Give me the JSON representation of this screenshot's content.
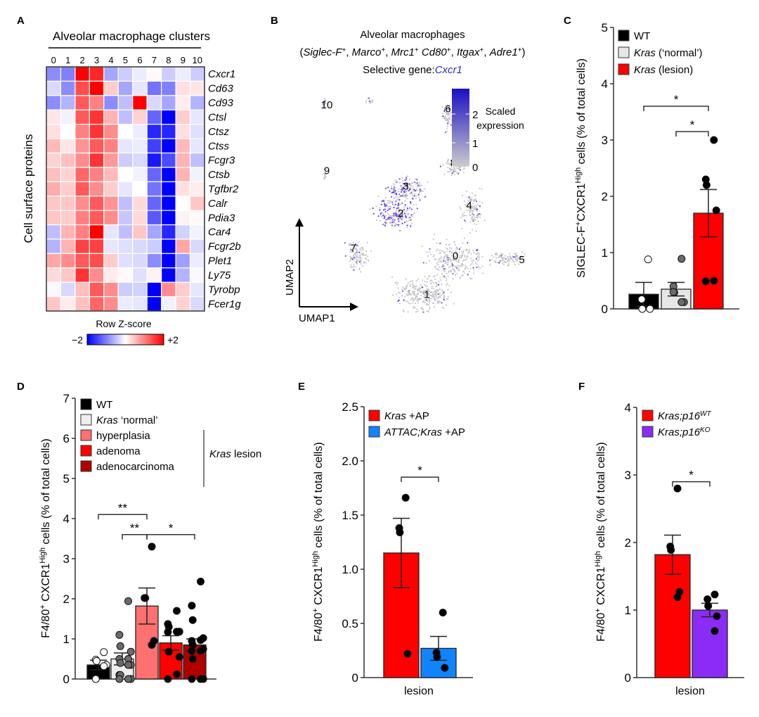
{
  "panels": {
    "A": {
      "letter": "A"
    },
    "B": {
      "letter": "B"
    },
    "C": {
      "letter": "C"
    },
    "D": {
      "letter": "D"
    },
    "E": {
      "letter": "E"
    },
    "F": {
      "letter": "F"
    }
  },
  "chart_data": [
    {
      "panel": "A",
      "type": "heatmap",
      "title": "Alveolar macrophage clusters",
      "ylabel": "Cell surface proteins",
      "colorbar": {
        "title": "Row Z-score",
        "min_label": "−2",
        "max_label": "+2",
        "range": [
          -2,
          2
        ],
        "low_color": "#0000ff",
        "mid_color": "#ffffff",
        "high_color": "#ff0000"
      },
      "columns": [
        "0",
        "1",
        "2",
        "3",
        "4",
        "5",
        "6",
        "7",
        "8",
        "9",
        "10"
      ],
      "rows": [
        "Cxcr1",
        "Cd63",
        "Cd93",
        "Ctsl",
        "Ctsz",
        "Ctss",
        "Fcgr3",
        "Ctsb",
        "Tgfbr2",
        "Calr",
        "Pdia3",
        "Car4",
        "Fcgr2b",
        "Plet1",
        "Ly75",
        "Tyrobp",
        "Fcer1g"
      ],
      "values": [
        [
          -0.9,
          -1.0,
          2.0,
          1.7,
          -0.7,
          -0.4,
          -0.15,
          0.05,
          -0.4,
          -0.15,
          -0.4
        ],
        [
          -0.3,
          -0.9,
          1.4,
          2.0,
          0.4,
          -0.7,
          -0.2,
          -1.1,
          -1.0,
          0.25,
          0.2
        ],
        [
          -0.9,
          -0.6,
          1.3,
          1.0,
          -0.9,
          -0.5,
          2.0,
          -0.3,
          -0.7,
          0.15,
          -0.6
        ],
        [
          0.2,
          -0.1,
          1.3,
          1.6,
          0.6,
          -0.5,
          0.35,
          -1.2,
          -2.0,
          0.4,
          -0.2
        ],
        [
          0.25,
          0.0,
          1.0,
          1.6,
          0.9,
          0.0,
          -0.15,
          -1.7,
          -1.7,
          0.25,
          -0.25
        ],
        [
          0.55,
          0.2,
          0.85,
          1.3,
          1.0,
          -0.2,
          -0.15,
          -1.5,
          -2.0,
          0.55,
          -0.2
        ],
        [
          0.35,
          0.5,
          0.9,
          1.6,
          0.8,
          -0.4,
          -0.3,
          -1.8,
          -1.4,
          0.6,
          -0.5
        ],
        [
          0.5,
          0.35,
          1.2,
          1.0,
          0.55,
          0.0,
          -0.1,
          -1.2,
          -2.0,
          0.6,
          -0.1
        ],
        [
          0.65,
          0.4,
          1.3,
          0.9,
          0.4,
          -0.2,
          0.0,
          -1.1,
          -2.0,
          0.25,
          0.15
        ],
        [
          0.45,
          0.45,
          0.9,
          1.3,
          0.85,
          -0.5,
          0.3,
          -1.2,
          -2.0,
          0.0,
          0.45
        ],
        [
          0.45,
          0.4,
          1.0,
          1.3,
          0.9,
          -0.45,
          0.3,
          -1.3,
          -2.0,
          0.1,
          0.05
        ],
        [
          -0.5,
          0.6,
          1.0,
          2.0,
          -0.2,
          -0.5,
          0.45,
          -0.7,
          -1.7,
          -0.35,
          -0.1
        ],
        [
          -0.6,
          0.6,
          1.5,
          1.5,
          -0.2,
          -0.25,
          -0.3,
          -0.4,
          -2.0,
          0.7,
          -0.3
        ],
        [
          0.7,
          0.9,
          1.3,
          1.4,
          0.4,
          -0.25,
          -0.3,
          -0.9,
          -2.0,
          -0.75,
          -0.15
        ],
        [
          0.3,
          0.45,
          1.6,
          0.9,
          0.15,
          0.05,
          -0.25,
          0.1,
          -2.0,
          -0.6,
          -0.05
        ],
        [
          -0.05,
          -0.3,
          0.5,
          1.3,
          0.9,
          -0.4,
          -0.35,
          -2.0,
          0.9,
          0.4,
          -0.2
        ],
        [
          0.45,
          0.15,
          0.5,
          1.2,
          0.9,
          -0.15,
          -0.2,
          -2.0,
          -0.1,
          0.35,
          -0.3
        ]
      ]
    },
    {
      "panel": "B",
      "type": "scatter",
      "title": "Alveolar macrophages",
      "subtitle_parts": [
        "(",
        "Siglec-F",
        "+",
        ", ",
        "Marco",
        "+",
        ", ",
        "Mrc1",
        "+",
        " ",
        "Cd80",
        "+",
        ", ",
        "Itgax",
        "+",
        ", ",
        "Adre1",
        "+",
        ")"
      ],
      "gene_line_prefix": "Selective gene:",
      "gene_name": "Cxcr1",
      "xlabel": "UMAP1",
      "ylabel": "UMAP2",
      "colorbar": {
        "title_line1": "Scaled",
        "title_line2": "expression",
        "ticks": [
          "0",
          "1",
          "2"
        ],
        "range": [
          0,
          2.6
        ],
        "low_color": "#cccccc",
        "high_color": "#1a0fc2"
      },
      "clusters": [
        {
          "label": "0",
          "x": 0.62,
          "y": -0.35
        },
        {
          "label": "1",
          "x": 0.35,
          "y": -0.85
        },
        {
          "label": "2",
          "x": 0.1,
          "y": 0.2
        },
        {
          "label": "3",
          "x": 0.15,
          "y": 0.55
        },
        {
          "label": "4",
          "x": 0.75,
          "y": 0.3
        },
        {
          "label": "5",
          "x": 1.25,
          "y": -0.4
        },
        {
          "label": "6",
          "x": 0.55,
          "y": 1.55
        },
        {
          "label": "7",
          "x": -0.35,
          "y": -0.25
        },
        {
          "label": "8",
          "x": 0.6,
          "y": 0.85
        },
        {
          "label": "9",
          "x": -0.6,
          "y": 0.75
        },
        {
          "label": "10",
          "x": -0.6,
          "y": 1.6
        }
      ]
    },
    {
      "panel": "C",
      "type": "bar",
      "ylabel_parts": {
        "main1": "SIGLEC-F",
        "sup1": "+",
        "main2": "CXCR1",
        "sup2": "High",
        "main3": " cells (% of total cells)"
      },
      "ylim": [
        0,
        5
      ],
      "yticks": [
        "0",
        "1",
        "2",
        "3",
        "4",
        "5"
      ],
      "legend": [
        {
          "label_italic": "",
          "label": "WT",
          "color": "#000000"
        },
        {
          "label_italic": "Kras",
          "label": " (‘normal’)",
          "color": "#e6e6e6"
        },
        {
          "label_italic": "Kras",
          "label": " (lesion)",
          "color": "#ff0000"
        }
      ],
      "categories": [
        "WT",
        "Kras (normal)",
        "Kras (lesion)"
      ],
      "values": [
        0.26,
        0.35,
        1.7
      ],
      "sem": [
        0.21,
        0.12,
        0.42
      ],
      "points": [
        [
          0.88,
          0.17,
          0.0,
          0.0
        ],
        [
          0.89,
          0.4,
          0.29,
          0.12,
          0.12,
          0.3
        ],
        [
          3.0,
          2.3,
          2.2,
          1.75,
          0.5,
          0.49
        ]
      ],
      "point_colors": [
        "#ffffff",
        "#6b6b6b",
        "#000000"
      ],
      "significance": [
        {
          "from": 0,
          "to": 2,
          "label": "*",
          "y": 3.6
        },
        {
          "from": 1,
          "to": 2,
          "label": "*",
          "y": 3.15
        }
      ]
    },
    {
      "panel": "D",
      "type": "bar",
      "ylabel_parts": {
        "main1": "F4/80",
        "sup1": "+",
        "main2": " CXCR1",
        "sup2": "High",
        "main3": " cells (% of total cells)"
      },
      "ylim": [
        0,
        7
      ],
      "yticks": [
        "0",
        "1",
        "2",
        "3",
        "4",
        "5",
        "6",
        "7"
      ],
      "legend": [
        {
          "label_italic": "",
          "label": "WT",
          "color": "#000000"
        },
        {
          "label_italic": "Kras",
          "label": " ‘normal’",
          "color": "#eeeeee"
        },
        {
          "label_italic": "",
          "label": "hyperplasia",
          "color": "#ff7070"
        },
        {
          "label_italic": "",
          "label": "adenoma",
          "color": "#ff0000"
        },
        {
          "label_italic": "",
          "label": "adenocarcinoma",
          "color": "#b00000"
        }
      ],
      "group_label_italic": "Kras",
      "group_label": " lesion",
      "categories": [
        "WT",
        "Kras normal",
        "hyperplasia",
        "adenoma",
        "adenocarcinoma"
      ],
      "values": [
        0.35,
        0.5,
        1.82,
        0.9,
        0.85
      ],
      "sem": [
        0.12,
        0.15,
        0.45,
        0.18,
        0.15
      ],
      "points": [
        [
          0.67,
          0.48,
          0.45,
          0.35,
          0.32,
          0.0
        ],
        [
          1.94,
          1.1,
          0.82,
          0.68,
          0.5,
          0.5,
          0.4,
          0.35,
          0.35,
          0.1,
          0.1,
          0.0,
          0.0,
          0.0
        ],
        [
          3.3,
          2.02,
          2.02,
          0.95,
          0.85
        ],
        [
          1.7,
          1.37,
          1.3,
          1.18,
          1.18,
          1.17,
          0.68,
          0.55,
          0.12,
          0.0
        ],
        [
          2.43,
          1.83,
          1.47,
          1.02,
          0.97,
          0.95,
          0.85,
          0.75,
          0.7,
          0.7,
          0.5,
          0.0,
          0.0,
          0.0
        ]
      ],
      "point_colors": [
        "#ffffff",
        "#6b6b6b",
        "#000000",
        "#000000",
        "#000000"
      ],
      "significance": [
        {
          "from": 0,
          "to": 2,
          "label": "**",
          "y": 4.1
        },
        {
          "from": 1,
          "to": 2,
          "label": "**",
          "y": 3.6
        },
        {
          "from": 2,
          "to": 4,
          "label": "*",
          "y": 3.6
        }
      ]
    },
    {
      "panel": "E",
      "type": "bar",
      "ylabel_parts": {
        "main1": "F4/80",
        "sup1": "+",
        "main2": " CXCR1",
        "sup2": "High",
        "main3": " cells (% of total cells)"
      },
      "ylim": [
        0,
        2.5
      ],
      "yticks": [
        "0",
        "0.5",
        "1.0",
        "1.5",
        "2.0",
        "2.5"
      ],
      "xlabel": "lesion",
      "legend": [
        {
          "label_italic": "Kras",
          "label": " +AP",
          "color": "#ff0000"
        },
        {
          "label_italic": "ATTAC;Kras",
          "label": " +AP",
          "color": "#1084ff"
        }
      ],
      "categories": [
        "Kras +AP",
        "ATTAC;Kras +AP"
      ],
      "values": [
        1.15,
        0.27
      ],
      "sem": [
        0.32,
        0.11
      ],
      "points": [
        [
          1.66,
          1.38,
          1.34,
          0.22
        ],
        [
          0.6,
          0.23,
          0.19,
          0.09
        ]
      ],
      "point_colors": [
        "#000000",
        "#000000"
      ],
      "significance": [
        {
          "from": 0,
          "to": 1,
          "label": "*",
          "y": 1.85
        }
      ]
    },
    {
      "panel": "F",
      "type": "bar",
      "ylabel_parts": {
        "main1": "F4/80",
        "sup1": "+",
        "main2": " CXCR1",
        "sup2": "High",
        "main3": " cells (% of total cells)"
      },
      "ylim": [
        0,
        4
      ],
      "yticks": [
        "0",
        "1",
        "2",
        "3",
        "4"
      ],
      "xlabel": "lesion",
      "legend": [
        {
          "label_italic": "Kras;p16",
          "sup": "WT",
          "color": "#ff0000"
        },
        {
          "label_italic": "Kras;p16",
          "sup": "KO",
          "color": "#8a2cf5"
        }
      ],
      "categories": [
        "Kras;p16 WT",
        "Kras;p16 KO"
      ],
      "values": [
        1.82,
        1.0
      ],
      "sem": [
        0.29,
        0.1
      ],
      "points": [
        [
          2.8,
          1.94,
          1.89,
          1.27,
          1.19
        ],
        [
          1.23,
          1.16,
          1.06,
          0.91,
          0.69
        ]
      ],
      "point_colors": [
        "#000000",
        "#000000"
      ],
      "significance": [
        {
          "from": 0,
          "to": 1,
          "label": "*",
          "y": 2.9
        }
      ]
    }
  ]
}
